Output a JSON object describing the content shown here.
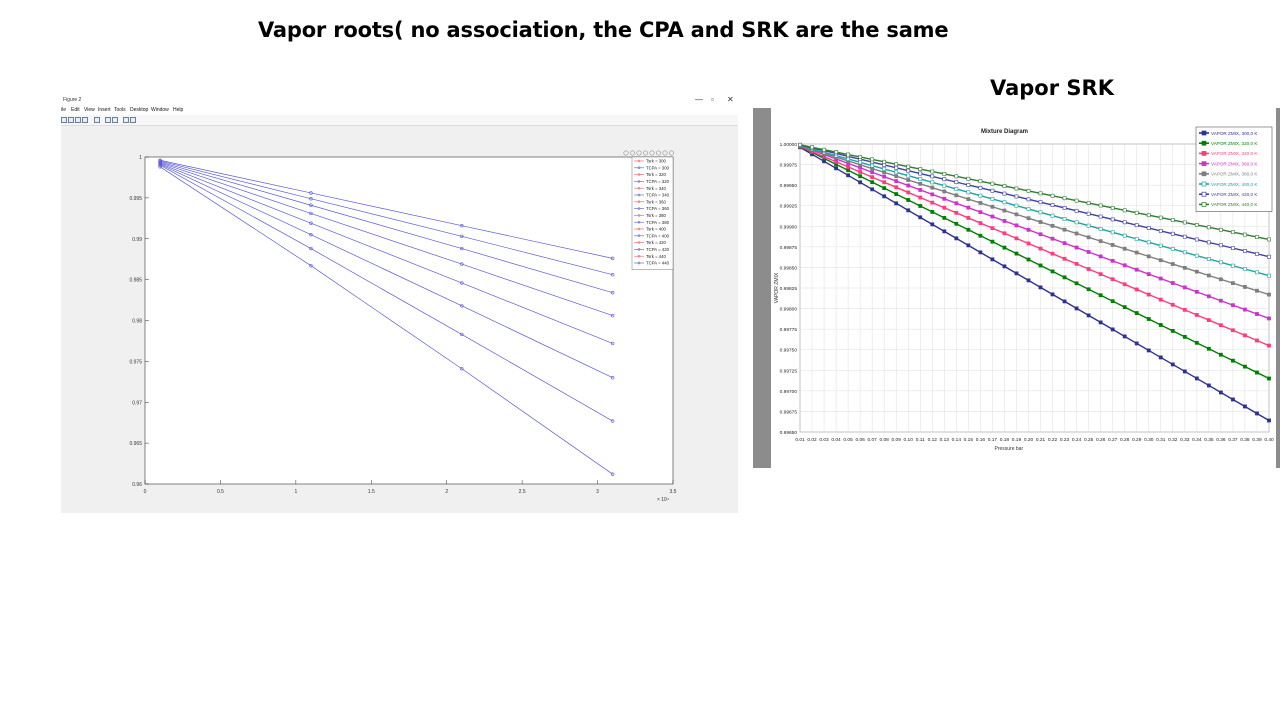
{
  "slide": {
    "title": "Vapor roots( no association, the CPA and SRK are the same",
    "right_title": "Vapor SRK"
  },
  "matlab_window": {
    "title": "Figure 2",
    "menu": [
      "ile",
      "Edit",
      "View",
      "Insert",
      "Tools",
      "Desktop",
      "Window",
      "Help"
    ],
    "controls": [
      "—",
      "▫",
      "✕"
    ]
  },
  "chart_data": [
    {
      "type": "line",
      "x_multiplier_label": "× 10⁴",
      "xlim": [
        0,
        3.5
      ],
      "ylim": [
        0.96,
        1
      ],
      "x_ticks": [
        "0",
        "0.5",
        "1",
        "1.5",
        "2",
        "2.5",
        "3",
        "3.5"
      ],
      "y_ticks": [
        "0.96",
        "0.965",
        "0.97",
        "0.975",
        "0.98",
        "0.985",
        "0.99",
        "0.995",
        "1"
      ],
      "x": [
        0.1,
        1.1,
        2.1,
        3.1
      ],
      "grid": false,
      "legend_position": "top-right",
      "legend": [
        "Tsrk = 300",
        "TCPA = 300",
        "Tsrk = 320",
        "TCPA = 320",
        "Tsrk = 340",
        "TCPA = 340",
        "Tsrk = 360",
        "TCPA = 360",
        "Tsrk = 380",
        "TCPA = 380",
        "Tsrk = 400",
        "TCPA = 400",
        "Tsrk = 420",
        "TCPA = 420",
        "Tsrk = 440",
        "TCPA = 440"
      ],
      "series": [
        {
          "name": "TCPA = 300",
          "values": [
            0.9988,
            0.9867,
            0.9741,
            0.9612
          ]
        },
        {
          "name": "TCPA = 320",
          "values": [
            0.999,
            0.9888,
            0.9783,
            0.9677
          ]
        },
        {
          "name": "TCPA = 340",
          "values": [
            0.9991,
            0.9905,
            0.9818,
            0.973
          ]
        },
        {
          "name": "TCPA = 360",
          "values": [
            0.9992,
            0.9919,
            0.9846,
            0.9772
          ]
        },
        {
          "name": "TCPA = 380",
          "values": [
            0.9993,
            0.9931,
            0.9869,
            0.9806
          ]
        },
        {
          "name": "TCPA = 400",
          "values": [
            0.9994,
            0.9941,
            0.9888,
            0.9834
          ]
        },
        {
          "name": "TCPA = 420",
          "values": [
            0.9995,
            0.9949,
            0.9903,
            0.9856
          ]
        },
        {
          "name": "TCPA = 440",
          "values": [
            0.9996,
            0.9956,
            0.9916,
            0.9876
          ]
        }
      ],
      "legend_colors": [
        "#e06060",
        "#5b5bd6"
      ]
    },
    {
      "type": "line",
      "title": "Mixture Diagram",
      "xlabel": "Pressure bar",
      "ylabel": "VAPOR ZMIX",
      "xlim": [
        0.01,
        0.4
      ],
      "ylim": [
        0.9965,
        1.0
      ],
      "y_ticks": [
        "0.99650",
        "0.99675",
        "0.99700",
        "0.99725",
        "0.99750",
        "0.99775",
        "0.99800",
        "0.99825",
        "0.99850",
        "0.99875",
        "0.99900",
        "0.99925",
        "0.99950",
        "0.99975",
        "1.00000"
      ],
      "x_ticks": [
        "0.01",
        "0.02",
        "0.03",
        "0.04",
        "0.05",
        "0.06",
        "0.07",
        "0.08",
        "0.09",
        "0.10",
        "0.11",
        "0.12",
        "0.13",
        "0.14",
        "0.15",
        "0.16",
        "0.17",
        "0.18",
        "0.19",
        "0.20",
        "0.21",
        "0.22",
        "0.23",
        "0.24",
        "0.25",
        "0.26",
        "0.27",
        "0.28",
        "0.29",
        "0.30",
        "0.31",
        "0.32",
        "0.33",
        "0.34",
        "0.35",
        "0.36",
        "0.37",
        "0.38",
        "0.39",
        "0.40"
      ],
      "grid": true,
      "legend_position": "top-right",
      "series": [
        {
          "name": "VAPOR ZMIX, 300,0 K",
          "color": "#2e3192",
          "marker": "square",
          "start": 0.99996,
          "end": 0.99664
        },
        {
          "name": "VAPOR ZMIX, 320,0 K",
          "color": "#008000",
          "marker": "square",
          "start": 0.99997,
          "end": 0.99715
        },
        {
          "name": "VAPOR ZMIX, 340,0 K",
          "color": "#ff3b7f",
          "marker": "square",
          "start": 0.99997,
          "end": 0.99755
        },
        {
          "name": "VAPOR ZMIX, 360,0 K",
          "color": "#cc33cc",
          "marker": "square",
          "start": 0.99998,
          "end": 0.99788
        },
        {
          "name": "VAPOR ZMIX, 380,0 K",
          "color": "#7f7f7f",
          "marker": "square",
          "start": 0.99998,
          "end": 0.99817
        },
        {
          "name": "VAPOR ZMIX, 400,0 K",
          "color": "#1fa3a3",
          "marker": "open-square",
          "start": 0.99998,
          "end": 0.9984
        },
        {
          "name": "VAPOR ZMIX, 420,0 K",
          "color": "#4040a0",
          "marker": "open-square",
          "start": 0.99999,
          "end": 0.99863
        },
        {
          "name": "VAPOR ZMIX, 440,0 K",
          "color": "#2e7d32",
          "marker": "open-square",
          "start": 0.99999,
          "end": 0.99884
        }
      ]
    }
  ]
}
